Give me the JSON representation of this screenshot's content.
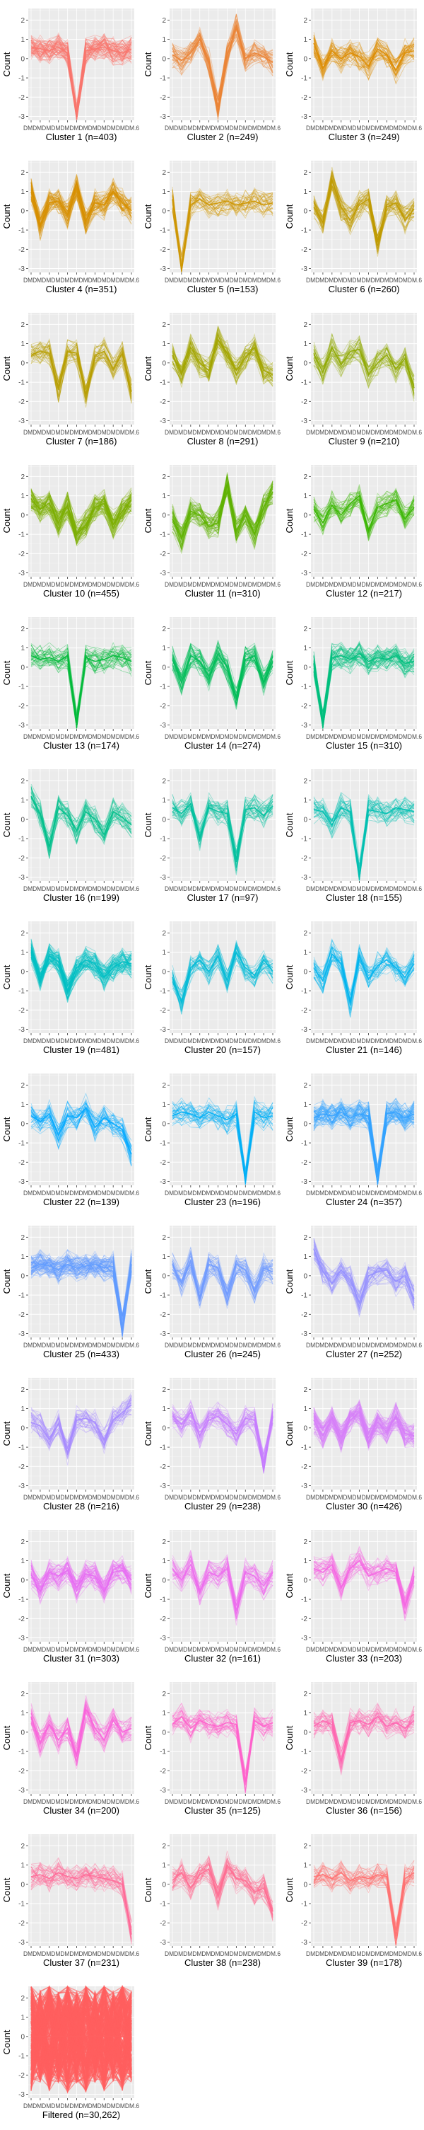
{
  "ylabel": "Count",
  "x_tick_text": "DMDMDMDMDMDMDMDMDMDMDMDM.6",
  "y_ticks": [
    -3,
    -2,
    -1,
    0,
    1,
    2
  ],
  "colors": [
    "#F8766D",
    "#EB8335",
    "#DE8C00",
    "#D89000",
    "#CD9600",
    "#C09B00",
    "#B79F00",
    "#A3A500",
    "#8FAA00",
    "#7CAE00",
    "#5EB300",
    "#39B600",
    "#00BA38",
    "#00BC59",
    "#00BF7D",
    "#00C08B",
    "#00C19F",
    "#00C0B1",
    "#00BFC4",
    "#00BBD6",
    "#00B4EF",
    "#00A9FF",
    "#00B0F6",
    "#35A2FF",
    "#619CFF",
    "#6F9AFF",
    "#9590FF",
    "#A58AFF",
    "#C77CFF",
    "#D67DF8",
    "#E76BF3",
    "#ED69EE",
    "#F564E3",
    "#FA62DB",
    "#FF61CC",
    "#FF64B0",
    "#FF6A98",
    "#FF6C91",
    "#FF7070",
    "#FF5F5F"
  ],
  "chart_data": [
    {
      "type": "line",
      "title": "Cluster 1 (n=403)",
      "n": 403,
      "ylim": [
        -3.2,
        2.6
      ],
      "mean_profile": [
        0.6,
        0.5,
        0.4,
        0.6,
        0.3,
        -2.9,
        0.4,
        0.5,
        0.6,
        0.4,
        0.3,
        0.5
      ]
    },
    {
      "type": "line",
      "title": "Cluster 2 (n=249)",
      "n": 249,
      "ylim": [
        -3.2,
        2.6
      ],
      "mean_profile": [
        0.2,
        -0.1,
        0.3,
        1.0,
        -0.2,
        -2.5,
        0.2,
        1.6,
        0.0,
        0.3,
        0.1,
        -0.2
      ]
    },
    {
      "type": "line",
      "title": "Cluster 3 (n=249)",
      "n": 249,
      "ylim": [
        -3.2,
        2.6
      ],
      "mean_profile": [
        0.8,
        -0.5,
        0.4,
        0.0,
        0.3,
        0.1,
        -0.4,
        0.5,
        0.2,
        -0.6,
        0.3,
        0.4
      ]
    },
    {
      "type": "line",
      "title": "Cluster 4 (n=351)",
      "n": 351,
      "ylim": [
        -3.2,
        2.6
      ],
      "mean_profile": [
        1.0,
        -0.8,
        0.4,
        0.5,
        -0.2,
        1.2,
        -0.5,
        0.4,
        0.3,
        1.0,
        0.4,
        0.0
      ]
    },
    {
      "type": "line",
      "title": "Cluster 5 (n=153)",
      "n": 153,
      "ylim": [
        -3.2,
        2.6
      ],
      "mean_profile": [
        0.6,
        -3.0,
        0.3,
        0.6,
        0.3,
        0.4,
        0.5,
        0.3,
        0.4,
        0.5,
        0.3,
        0.4
      ]
    },
    {
      "type": "line",
      "title": "Cluster 6 (n=260)",
      "n": 260,
      "ylim": [
        -3.2,
        2.6
      ],
      "mean_profile": [
        0.2,
        -0.6,
        1.6,
        0.2,
        -0.5,
        0.3,
        0.6,
        -1.6,
        0.2,
        0.4,
        -0.5,
        0.1
      ]
    },
    {
      "type": "line",
      "title": "Cluster 7 (n=186)",
      "n": 186,
      "ylim": [
        -3.2,
        2.6
      ],
      "mean_profile": [
        0.4,
        0.6,
        0.5,
        -1.4,
        0.6,
        0.5,
        -1.6,
        0.4,
        0.6,
        -0.3,
        0.5,
        -1.5
      ]
    },
    {
      "type": "line",
      "title": "Cluster 8 (n=291)",
      "n": 291,
      "ylim": [
        -3.2,
        2.6
      ],
      "mean_profile": [
        0.4,
        -0.6,
        0.8,
        0.0,
        -0.4,
        1.2,
        0.5,
        -0.4,
        0.3,
        0.8,
        -0.4,
        -0.6
      ]
    },
    {
      "type": "line",
      "title": "Cluster 9 (n=210)",
      "n": 210,
      "ylim": [
        -3.2,
        2.6
      ],
      "mean_profile": [
        0.5,
        -0.5,
        0.8,
        -0.1,
        0.6,
        0.7,
        -0.6,
        0.0,
        0.4,
        -0.3,
        0.2,
        -1.3
      ]
    },
    {
      "type": "line",
      "title": "Cluster 10 (n=455)",
      "n": 455,
      "ylim": [
        -3.2,
        2.6
      ],
      "mean_profile": [
        0.8,
        0.3,
        0.6,
        -0.4,
        0.5,
        -1.0,
        -0.5,
        0.4,
        0.6,
        -0.5,
        0.2,
        0.8
      ]
    },
    {
      "type": "line",
      "title": "Cluster 11 (n=310)",
      "n": 310,
      "ylim": [
        -3.2,
        2.6
      ],
      "mean_profile": [
        -0.2,
        -1.2,
        0.2,
        0.0,
        -0.6,
        -0.4,
        1.6,
        -0.8,
        0.0,
        -1.0,
        0.4,
        1.2
      ]
    },
    {
      "type": "line",
      "title": "Cluster 12 (n=217)",
      "n": 217,
      "ylim": [
        -3.2,
        2.6
      ],
      "mean_profile": [
        0.3,
        -0.4,
        0.5,
        0.0,
        0.6,
        1.0,
        -0.8,
        0.4,
        0.6,
        0.8,
        -0.2,
        0.4
      ]
    },
    {
      "type": "line",
      "title": "Cluster 13 (n=174)",
      "n": 174,
      "ylim": [
        -3.2,
        2.6
      ],
      "mean_profile": [
        0.6,
        0.4,
        0.5,
        0.3,
        0.6,
        -2.9,
        0.5,
        0.3,
        0.4,
        0.6,
        0.5,
        0.3
      ]
    },
    {
      "type": "line",
      "title": "Cluster 14 (n=274)",
      "n": 274,
      "ylim": [
        -3.2,
        2.6
      ],
      "mean_profile": [
        0.4,
        -0.8,
        0.6,
        0.3,
        -0.5,
        0.7,
        0.0,
        -1.6,
        0.4,
        0.6,
        -0.8,
        0.3
      ]
    },
    {
      "type": "line",
      "title": "Cluster 15 (n=310)",
      "n": 310,
      "ylim": [
        -3.2,
        2.6
      ],
      "mean_profile": [
        0.2,
        -2.8,
        0.5,
        0.6,
        0.4,
        0.7,
        0.3,
        0.5,
        0.4,
        0.6,
        0.2,
        0.3
      ]
    },
    {
      "type": "line",
      "title": "Cluster 16 (n=199)",
      "n": 199,
      "ylim": [
        -3.2,
        2.6
      ],
      "mean_profile": [
        1.2,
        0.3,
        -1.4,
        0.6,
        0.2,
        -0.6,
        0.4,
        0.0,
        -0.8,
        0.4,
        0.1,
        -0.3
      ]
    },
    {
      "type": "line",
      "title": "Cluster 17 (n=97)",
      "n": 97,
      "ylim": [
        -3.2,
        2.6
      ],
      "mean_profile": [
        0.6,
        0.3,
        0.8,
        -0.9,
        0.6,
        0.4,
        0.3,
        -2.2,
        0.5,
        0.6,
        0.2,
        0.7
      ]
    },
    {
      "type": "line",
      "title": "Cluster 18 (n=155)",
      "n": 155,
      "ylim": [
        -3.2,
        2.6
      ],
      "mean_profile": [
        0.5,
        0.4,
        -0.3,
        0.6,
        0.4,
        -2.9,
        0.5,
        0.4,
        0.3,
        0.6,
        0.5,
        0.4
      ]
    },
    {
      "type": "line",
      "title": "Cluster 19 (n=481)",
      "n": 481,
      "ylim": [
        -3.2,
        2.6
      ],
      "mean_profile": [
        1.0,
        -0.4,
        0.8,
        0.5,
        -1.0,
        0.2,
        0.6,
        0.4,
        -0.3,
        0.2,
        0.5,
        0.4
      ]
    },
    {
      "type": "line",
      "title": "Cluster 20 (n=157)",
      "n": 157,
      "ylim": [
        -3.2,
        2.6
      ],
      "mean_profile": [
        -0.3,
        -1.6,
        0.2,
        0.6,
        0.0,
        0.8,
        -0.5,
        1.0,
        0.2,
        -0.2,
        0.6,
        0.0
      ]
    },
    {
      "type": "line",
      "title": "Cluster 21 (n=146)",
      "n": 146,
      "ylim": [
        -3.2,
        2.6
      ],
      "mean_profile": [
        0.2,
        -0.5,
        0.9,
        0.4,
        -1.6,
        0.8,
        -0.4,
        0.3,
        0.6,
        0.2,
        -0.3,
        0.4
      ]
    },
    {
      "type": "line",
      "title": "Cluster 22 (n=139)",
      "n": 139,
      "ylim": [
        -3.2,
        2.6
      ],
      "mean_profile": [
        0.4,
        0.1,
        0.5,
        -0.6,
        0.4,
        0.3,
        0.8,
        -0.2,
        0.3,
        0.0,
        -0.3,
        -1.6
      ]
    },
    {
      "type": "line",
      "title": "Cluster 23 (n=196)",
      "n": 196,
      "ylim": [
        -3.2,
        2.6
      ],
      "mean_profile": [
        0.4,
        0.6,
        0.5,
        0.3,
        0.6,
        0.4,
        0.2,
        0.5,
        -2.8,
        0.6,
        0.3,
        0.4
      ]
    },
    {
      "type": "line",
      "title": "Cluster 24 (n=357)",
      "n": 357,
      "ylim": [
        -3.2,
        2.6
      ],
      "mean_profile": [
        0.3,
        0.5,
        0.4,
        0.6,
        0.3,
        0.5,
        0.4,
        -2.8,
        0.5,
        0.6,
        0.3,
        0.5
      ]
    },
    {
      "type": "line",
      "title": "Cluster 25 (n=433)",
      "n": 433,
      "ylim": [
        -3.2,
        2.6
      ],
      "mean_profile": [
        0.4,
        0.6,
        0.5,
        0.3,
        0.6,
        0.4,
        0.5,
        0.6,
        0.4,
        0.5,
        -2.6,
        0.6
      ]
    },
    {
      "type": "line",
      "title": "Cluster 26 (n=245)",
      "n": 245,
      "ylim": [
        -3.2,
        2.6
      ],
      "mean_profile": [
        0.6,
        -0.4,
        0.8,
        -1.2,
        0.6,
        0.4,
        -1.0,
        0.6,
        0.3,
        -0.8,
        0.4,
        0.2
      ]
    },
    {
      "type": "line",
      "title": "Cluster 27 (n=252)",
      "n": 252,
      "ylim": [
        -3.2,
        2.6
      ],
      "mean_profile": [
        1.4,
        0.2,
        -0.4,
        0.3,
        -0.2,
        -1.4,
        0.0,
        0.2,
        0.3,
        -0.3,
        0.0,
        -1.2
      ]
    },
    {
      "type": "line",
      "title": "Cluster 28 (n=216)",
      "n": 216,
      "ylim": [
        -3.2,
        2.6
      ],
      "mean_profile": [
        0.3,
        0.1,
        -0.6,
        0.2,
        -1.3,
        0.4,
        0.5,
        0.3,
        -0.6,
        0.4,
        0.8,
        1.2
      ]
    },
    {
      "type": "line",
      "title": "Cluster 29 (n=238)",
      "n": 238,
      "ylim": [
        -3.2,
        2.6
      ],
      "mean_profile": [
        0.6,
        0.2,
        0.8,
        -0.4,
        0.4,
        0.6,
        0.2,
        -0.3,
        0.5,
        0.4,
        -1.8,
        0.6
      ]
    },
    {
      "type": "line",
      "title": "Cluster 30 (n=426)",
      "n": 426,
      "ylim": [
        -3.2,
        2.6
      ],
      "mean_profile": [
        0.4,
        -0.4,
        0.5,
        -0.5,
        0.4,
        0.8,
        -0.5,
        0.3,
        -0.2,
        0.6,
        -0.3,
        -0.4
      ]
    },
    {
      "type": "line",
      "title": "Cluster 31 (n=303)",
      "n": 303,
      "ylim": [
        -3.2,
        2.6
      ],
      "mean_profile": [
        0.3,
        -0.6,
        0.4,
        0.2,
        0.5,
        -0.4,
        0.3,
        0.2,
        -0.6,
        0.4,
        0.5,
        0.0
      ]
    },
    {
      "type": "line",
      "title": "Cluster 32 (n=161)",
      "n": 161,
      "ylim": [
        -3.2,
        2.6
      ],
      "mean_profile": [
        0.6,
        0.0,
        0.8,
        -0.6,
        0.4,
        0.2,
        0.6,
        -1.6,
        0.4,
        0.2,
        -0.3,
        0.4
      ]
    },
    {
      "type": "line",
      "title": "Cluster 33 (n=203)",
      "n": 203,
      "ylim": [
        -3.2,
        2.6
      ],
      "mean_profile": [
        0.6,
        0.4,
        0.8,
        -0.4,
        0.6,
        1.0,
        0.2,
        0.4,
        0.6,
        0.4,
        -1.4,
        0.2
      ]
    },
    {
      "type": "line",
      "title": "Cluster 34 (n=200)",
      "n": 200,
      "ylim": [
        -3.2,
        2.6
      ],
      "mean_profile": [
        0.8,
        -0.6,
        0.4,
        -0.4,
        0.2,
        -1.2,
        1.2,
        0.2,
        -0.4,
        0.6,
        0.0,
        0.2
      ]
    },
    {
      "type": "line",
      "title": "Cluster 35 (n=125)",
      "n": 125,
      "ylim": [
        -3.2,
        2.6
      ],
      "mean_profile": [
        0.4,
        0.8,
        0.2,
        0.6,
        0.4,
        0.3,
        0.5,
        0.4,
        -2.6,
        0.6,
        0.3,
        0.5
      ]
    },
    {
      "type": "line",
      "title": "Cluster 36 (n=156)",
      "n": 156,
      "ylim": [
        -3.2,
        2.6
      ],
      "mean_profile": [
        0.3,
        0.6,
        0.4,
        -1.5,
        0.5,
        0.6,
        0.4,
        0.8,
        0.3,
        0.5,
        0.2,
        0.6
      ]
    },
    {
      "type": "line",
      "title": "Cluster 37 (n=231)",
      "n": 231,
      "ylim": [
        -3.2,
        2.6
      ],
      "mean_profile": [
        0.4,
        0.5,
        0.3,
        0.6,
        0.4,
        0.3,
        0.5,
        0.4,
        0.3,
        0.2,
        0.0,
        -2.6
      ]
    },
    {
      "type": "line",
      "title": "Cluster 38 (n=238)",
      "n": 238,
      "ylim": [
        -3.2,
        2.6
      ],
      "mean_profile": [
        0.2,
        0.6,
        -0.2,
        0.5,
        0.8,
        -0.6,
        1.0,
        0.3,
        0.2,
        -0.4,
        -0.2,
        -1.4
      ]
    },
    {
      "type": "line",
      "title": "Cluster 39 (n=178)",
      "n": 178,
      "ylim": [
        -3.2,
        2.6
      ],
      "mean_profile": [
        0.4,
        0.5,
        0.3,
        0.6,
        0.2,
        0.4,
        0.3,
        0.5,
        0.4,
        -2.7,
        0.3,
        0.6
      ]
    },
    {
      "type": "line",
      "title": "Filtered (n=30,262)",
      "n": 30262,
      "ylim": [
        -3.2,
        2.6
      ],
      "mean_profile": [
        0.0,
        0.0,
        0.0,
        0.0,
        0.0,
        0.0,
        0.0,
        0.0,
        0.0,
        0.0,
        0.0,
        0.0
      ]
    }
  ]
}
